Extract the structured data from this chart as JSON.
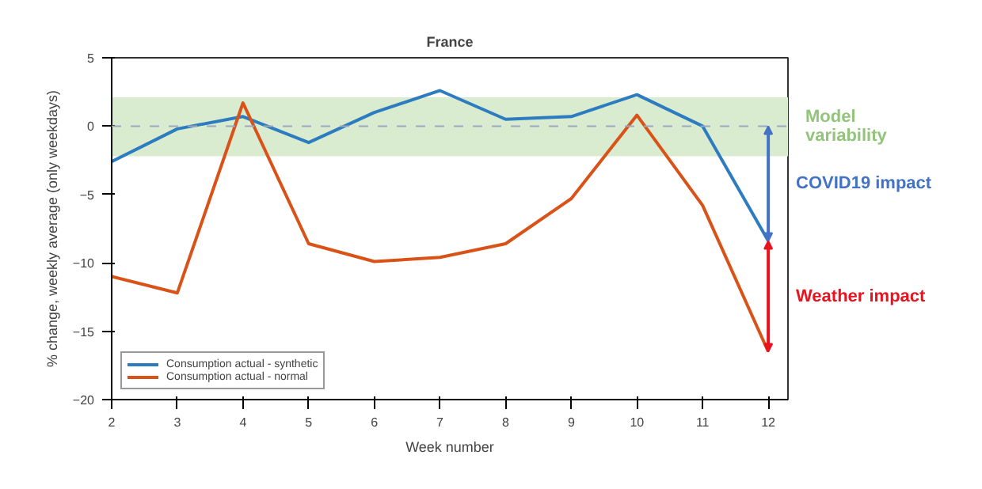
{
  "chart_data": {
    "type": "line",
    "title": "France",
    "xlabel": "Week number",
    "ylabel": "% change, weekly average (only weekdays)",
    "x": [
      2,
      3,
      4,
      5,
      6,
      7,
      8,
      9,
      10,
      11,
      12
    ],
    "series": [
      {
        "name": "Consumption actual - synthetic",
        "color": "#2e7cc0",
        "values": [
          -2.6,
          -0.2,
          0.7,
          -1.2,
          1.0,
          2.6,
          0.5,
          0.7,
          2.3,
          0.0,
          -8.4
        ]
      },
      {
        "name": "Consumption actual - normal",
        "color": "#d95319",
        "values": [
          -11.0,
          -12.2,
          1.7,
          -8.6,
          -9.9,
          -9.6,
          -8.6,
          -5.3,
          0.8,
          -5.8,
          -16.5
        ]
      }
    ],
    "xlim": [
      2,
      12.3
    ],
    "ylim": [
      -20,
      5
    ],
    "xticks": [
      2,
      3,
      4,
      5,
      6,
      7,
      8,
      9,
      10,
      11,
      12
    ],
    "yticks": [
      -20,
      -15,
      -10,
      -5,
      0,
      5
    ],
    "bands": [
      {
        "axis": "y",
        "from": -2.2,
        "to": 2.1,
        "label": "Model variability",
        "color": "#d9ecd0"
      }
    ],
    "ref_lines": [
      {
        "axis": "y",
        "value": 0,
        "color": "#9aa8c0",
        "line_style": "dashed"
      }
    ],
    "annotations": [
      "COVID19 impact",
      "Weather impact"
    ],
    "grid": false,
    "legend": "bottom left",
    "marker": "none",
    "line_style": "solid"
  }
}
